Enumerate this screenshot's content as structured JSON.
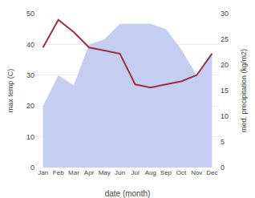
{
  "chart_data": {
    "type": "line",
    "categories": [
      "Jan",
      "Feb",
      "Mar",
      "Apr",
      "May",
      "Jun",
      "Jul",
      "Aug",
      "Sep",
      "Oct",
      "Nov",
      "Dec"
    ],
    "series": [
      {
        "type": "area",
        "axis": "y2",
        "color": "#c5cef0",
        "values": [
          12,
          18,
          16,
          24,
          25,
          28,
          28,
          28,
          27,
          23,
          18,
          22
        ]
      },
      {
        "type": "line",
        "color": "#9b3040",
        "values": [
          39,
          48,
          44,
          39,
          38,
          37,
          27,
          26,
          27,
          28,
          30,
          37
        ]
      }
    ],
    "xlabel": "date (month)",
    "ylabel": "max temp (C)",
    "y2label": "med. precipitation (kg/m2)",
    "ylim": [
      0,
      50
    ],
    "yticks": [
      0,
      10,
      20,
      30,
      40,
      50
    ],
    "y2lim": [
      0,
      30
    ],
    "y2ticks": [
      0,
      5,
      10,
      15,
      20,
      25,
      30
    ],
    "grid": true
  }
}
